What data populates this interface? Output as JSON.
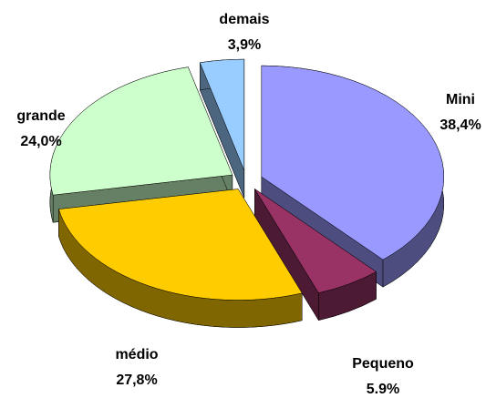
{
  "chart_data": {
    "type": "pie",
    "categories": [
      "Mini",
      "Pequeno",
      "médio",
      "grande",
      "demais"
    ],
    "values": [
      38.4,
      5.9,
      27.8,
      24.0,
      3.9
    ],
    "value_labels": [
      "38,4%",
      "5.9%",
      "27,8%",
      "24,0%",
      "3,9%"
    ],
    "colors": [
      "#9999ff",
      "#993366",
      "#ffcc00",
      "#ccffcc",
      "#99ccff"
    ],
    "three_d": true,
    "exploded": true
  }
}
